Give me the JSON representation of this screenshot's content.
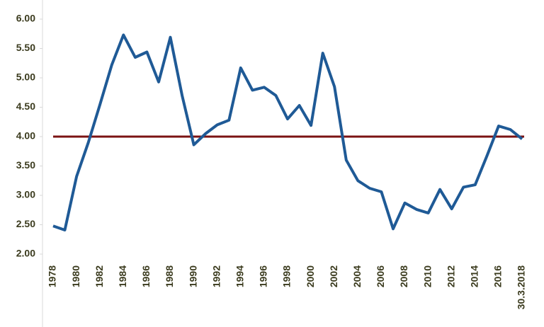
{
  "chart_data": {
    "type": "line",
    "categories": [
      "1978",
      null,
      "1980",
      null,
      "1982",
      null,
      "1984",
      null,
      "1986",
      null,
      "1988",
      null,
      "1990",
      null,
      "1992",
      null,
      "1994",
      null,
      "1996",
      null,
      "1998",
      null,
      "2000",
      null,
      "2002",
      null,
      "2004",
      null,
      "2006",
      null,
      "2008",
      null,
      "2010",
      null,
      "2012",
      null,
      "2014",
      null,
      "2016",
      null,
      "30.3.2018"
    ],
    "values": [
      2.48,
      2.41,
      3.32,
      3.9,
      4.55,
      5.22,
      5.73,
      5.35,
      5.44,
      4.93,
      5.69,
      4.7,
      3.86,
      4.05,
      4.2,
      4.28,
      5.17,
      4.79,
      4.84,
      4.7,
      4.3,
      4.53,
      4.19,
      5.42,
      4.85,
      3.6,
      3.25,
      3.12,
      3.06,
      2.43,
      2.87,
      2.76,
      2.7,
      3.1,
      2.77,
      3.14,
      3.18,
      3.67,
      4.18,
      4.12,
      3.96
    ],
    "color": "#1f5a96",
    "reference_line": {
      "value": 4,
      "color": "#7b1313"
    },
    "ylim": [
      2,
      6
    ],
    "yticks": [
      {
        "value": 2,
        "label": "2.00"
      },
      {
        "value": 2.5,
        "label": "2.50"
      },
      {
        "value": 3,
        "label": "3.00"
      },
      {
        "value": 3.5,
        "label": "3.50"
      },
      {
        "value": 4,
        "label": "4.00"
      },
      {
        "value": 4.5,
        "label": "4.50"
      },
      {
        "value": 5,
        "label": "5.00"
      },
      {
        "value": 5.5,
        "label": "5.50"
      },
      {
        "value": 6,
        "label": "6.00"
      }
    ],
    "grid": false
  }
}
